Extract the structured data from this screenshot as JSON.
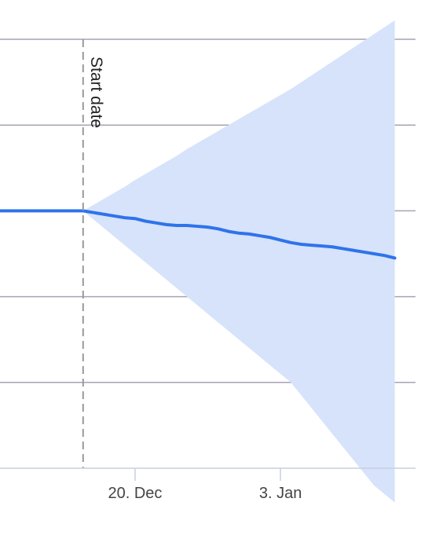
{
  "chart_data": {
    "type": "line",
    "title": "",
    "xlabel": "",
    "ylabel": "",
    "x_axis": {
      "type": "datetime",
      "range": [
        "2024-12-07",
        "2025-01-16"
      ],
      "ticks": [
        {
          "date": "2024-12-20",
          "label": "20. Dec"
        },
        {
          "date": "2025-01-03",
          "label": "3. Jan"
        }
      ]
    },
    "y_axis": {
      "range": [
        -3,
        2
      ],
      "gridlines": [
        -2,
        -1,
        0,
        1,
        2
      ],
      "tick_labels_visible": false
    },
    "plotline": {
      "date": "2024-12-15",
      "label": "Start date",
      "color": "#999999",
      "style": "dashed"
    },
    "grid": true,
    "legend": "none",
    "colors": {
      "line": "#2f73ea",
      "band": "#d6e3fb",
      "grid": "#a8a2b6",
      "axis": "#c9cfe0"
    },
    "series": [
      {
        "type": "line",
        "x": [
          "2024-12-07",
          "2024-12-08",
          "2024-12-09",
          "2024-12-10",
          "2024-12-11",
          "2024-12-12",
          "2024-12-13",
          "2024-12-14",
          "2024-12-15",
          "2024-12-16",
          "2024-12-17",
          "2024-12-18",
          "2024-12-19",
          "2024-12-20",
          "2024-12-21",
          "2024-12-22",
          "2024-12-23",
          "2024-12-24",
          "2024-12-25",
          "2024-12-26",
          "2024-12-27",
          "2024-12-28",
          "2024-12-29",
          "2024-12-30",
          "2024-12-31",
          "2025-01-01",
          "2025-01-02",
          "2025-01-03",
          "2025-01-04",
          "2025-01-05",
          "2025-01-06",
          "2025-01-07",
          "2025-01-08",
          "2025-01-09",
          "2025-01-10",
          "2025-01-11",
          "2025-01-12",
          "2025-01-13",
          "2025-01-14"
        ],
        "values": [
          0,
          0,
          0,
          0,
          0,
          0,
          0,
          0,
          0,
          -0.02,
          -0.04,
          -0.06,
          -0.08,
          -0.09,
          -0.12,
          -0.14,
          -0.16,
          -0.17,
          -0.17,
          -0.18,
          -0.19,
          -0.21,
          -0.24,
          -0.26,
          -0.27,
          -0.29,
          -0.31,
          -0.34,
          -0.37,
          -0.39,
          -0.4,
          -0.41,
          -0.42,
          -0.44,
          -0.46,
          -0.48,
          -0.5,
          -0.52,
          -0.55
        ]
      },
      {
        "type": "arearange",
        "x": [
          "2024-12-15",
          "2024-12-16",
          "2024-12-17",
          "2024-12-18",
          "2024-12-19",
          "2024-12-20",
          "2024-12-21",
          "2024-12-22",
          "2024-12-23",
          "2024-12-24",
          "2024-12-25",
          "2024-12-26",
          "2024-12-27",
          "2024-12-28",
          "2024-12-29",
          "2024-12-30",
          "2024-12-31",
          "2025-01-01",
          "2025-01-02",
          "2025-01-03",
          "2025-01-04",
          "2025-01-05",
          "2025-01-06",
          "2025-01-07",
          "2025-01-08",
          "2025-01-09",
          "2025-01-10",
          "2025-01-11",
          "2025-01-12",
          "2025-01-13",
          "2025-01-14"
        ],
        "low": [
          0,
          -0.1,
          -0.2,
          -0.3,
          -0.4,
          -0.5,
          -0.6,
          -0.7,
          -0.8,
          -0.9,
          -1.0,
          -1.1,
          -1.2,
          -1.3,
          -1.4,
          -1.5,
          -1.6,
          -1.7,
          -1.8,
          -1.9,
          -2.0,
          -2.15,
          -2.3,
          -2.45,
          -2.6,
          -2.75,
          -2.9,
          -3.05,
          -3.2,
          -3.3,
          -3.4
        ],
        "high": [
          0,
          0.07,
          0.14,
          0.21,
          0.28,
          0.36,
          0.43,
          0.5,
          0.57,
          0.64,
          0.72,
          0.79,
          0.86,
          0.93,
          1.0,
          1.07,
          1.14,
          1.21,
          1.28,
          1.35,
          1.42,
          1.5,
          1.58,
          1.66,
          1.74,
          1.82,
          1.9,
          1.98,
          2.06,
          2.14,
          2.22
        ]
      }
    ]
  }
}
